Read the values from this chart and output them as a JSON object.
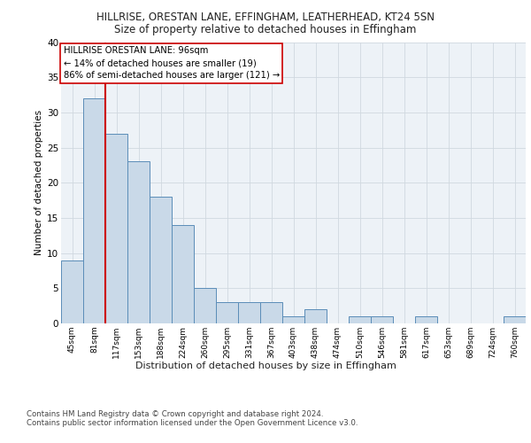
{
  "title1": "HILLRISE, ORESTAN LANE, EFFINGHAM, LEATHERHEAD, KT24 5SN",
  "title2": "Size of property relative to detached houses in Effingham",
  "xlabel": "Distribution of detached houses by size in Effingham",
  "ylabel": "Number of detached properties",
  "categories": [
    "45sqm",
    "81sqm",
    "117sqm",
    "153sqm",
    "188sqm",
    "224sqm",
    "260sqm",
    "295sqm",
    "331sqm",
    "367sqm",
    "403sqm",
    "438sqm",
    "474sqm",
    "510sqm",
    "546sqm",
    "581sqm",
    "617sqm",
    "653sqm",
    "689sqm",
    "724sqm",
    "760sqm"
  ],
  "values": [
    9,
    32,
    27,
    23,
    18,
    14,
    5,
    3,
    3,
    3,
    1,
    2,
    0,
    1,
    1,
    0,
    1,
    0,
    0,
    0,
    1
  ],
  "bar_color": "#c9d9e8",
  "bar_edge_color": "#5b8db8",
  "annotation_box_text": "HILLRISE ORESTAN LANE: 96sqm\n← 14% of detached houses are smaller (19)\n86% of semi-detached houses are larger (121) →",
  "vertical_line_color": "#cc0000",
  "annotation_box_facecolor": "#ffffff",
  "annotation_box_edgecolor": "#cc0000",
  "grid_color": "#d0d8e0",
  "background_color": "#edf2f7",
  "footer_text": "Contains HM Land Registry data © Crown copyright and database right 2024.\nContains public sector information licensed under the Open Government Licence v3.0.",
  "ylim": [
    0,
    40
  ],
  "yticks": [
    0,
    5,
    10,
    15,
    20,
    25,
    30,
    35,
    40
  ]
}
